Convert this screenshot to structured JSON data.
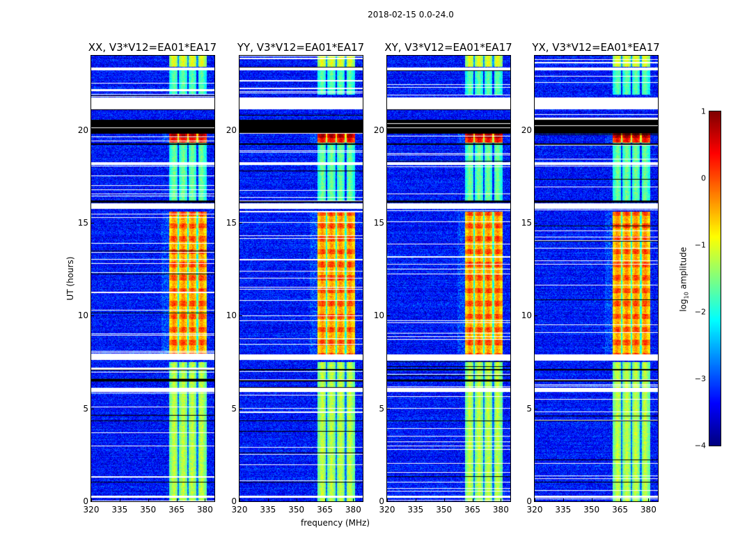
{
  "chart_data": {
    "type": "heatmap",
    "title": "2018-02-15 0.0-24.0",
    "xlabel": "frequency (MHz)",
    "ylabel": "UT (hours)",
    "xlim": [
      320,
      385
    ],
    "ylim": [
      0,
      24
    ],
    "xticks": [
      "320",
      "335",
      "350",
      "365",
      "380"
    ],
    "yticks": [
      "0",
      "5",
      "10",
      "15",
      "20"
    ],
    "colorbar": {
      "label": "log",
      "label_sub": "10",
      "label_rest": " amplitude",
      "range": [
        -4,
        1
      ],
      "ticks": [
        "1",
        "0",
        "−1",
        "−2",
        "−3",
        "−4"
      ],
      "colormap": "jet"
    },
    "panels": [
      {
        "title": "XX, V3*V12=EA01*EA17"
      },
      {
        "title": "YY, V3*V12=EA01*EA17"
      },
      {
        "title": "XY, V3*V12=EA01*EA17"
      },
      {
        "title": "YX, V3*V12=EA01*EA17"
      }
    ],
    "background_level": -3.3,
    "rfi_band_mhz": [
      361,
      381
    ],
    "rfi_subband_edges_mhz": [
      366,
      371,
      376
    ],
    "rfi_levels": [
      {
        "hours": [
          0,
          7.5
        ],
        "level": -1.4
      },
      {
        "hours": [
          7.9,
          15.6
        ],
        "level": -0.6
      },
      {
        "hours": [
          16.2,
          19.3
        ],
        "level": -1.8
      },
      {
        "hours": [
          19.3,
          19.8
        ],
        "level": 0.2
      },
      {
        "hours": [
          21.9,
          23.3
        ],
        "level": -1.9
      },
      {
        "hours": [
          23.4,
          24
        ],
        "level": -1.2
      }
    ],
    "flagged_white_hours": [
      [
        23.2,
        23.35
      ],
      [
        21.1,
        21.75
      ],
      [
        15.75,
        16.05
      ],
      [
        7.6,
        7.9
      ],
      [
        5.9,
        6.1
      ],
      [
        18.1,
        18.25
      ],
      [
        0.2,
        0.3
      ]
    ],
    "flagged_black_hours": [
      [
        19.8,
        20.55
      ],
      [
        19.2,
        19.27
      ],
      [
        16.1,
        16.2
      ],
      [
        6.45,
        6.55
      ],
      [
        7.05,
        7.12
      ],
      [
        4.3,
        4.36
      ],
      [
        1.0,
        1.05
      ]
    ]
  }
}
